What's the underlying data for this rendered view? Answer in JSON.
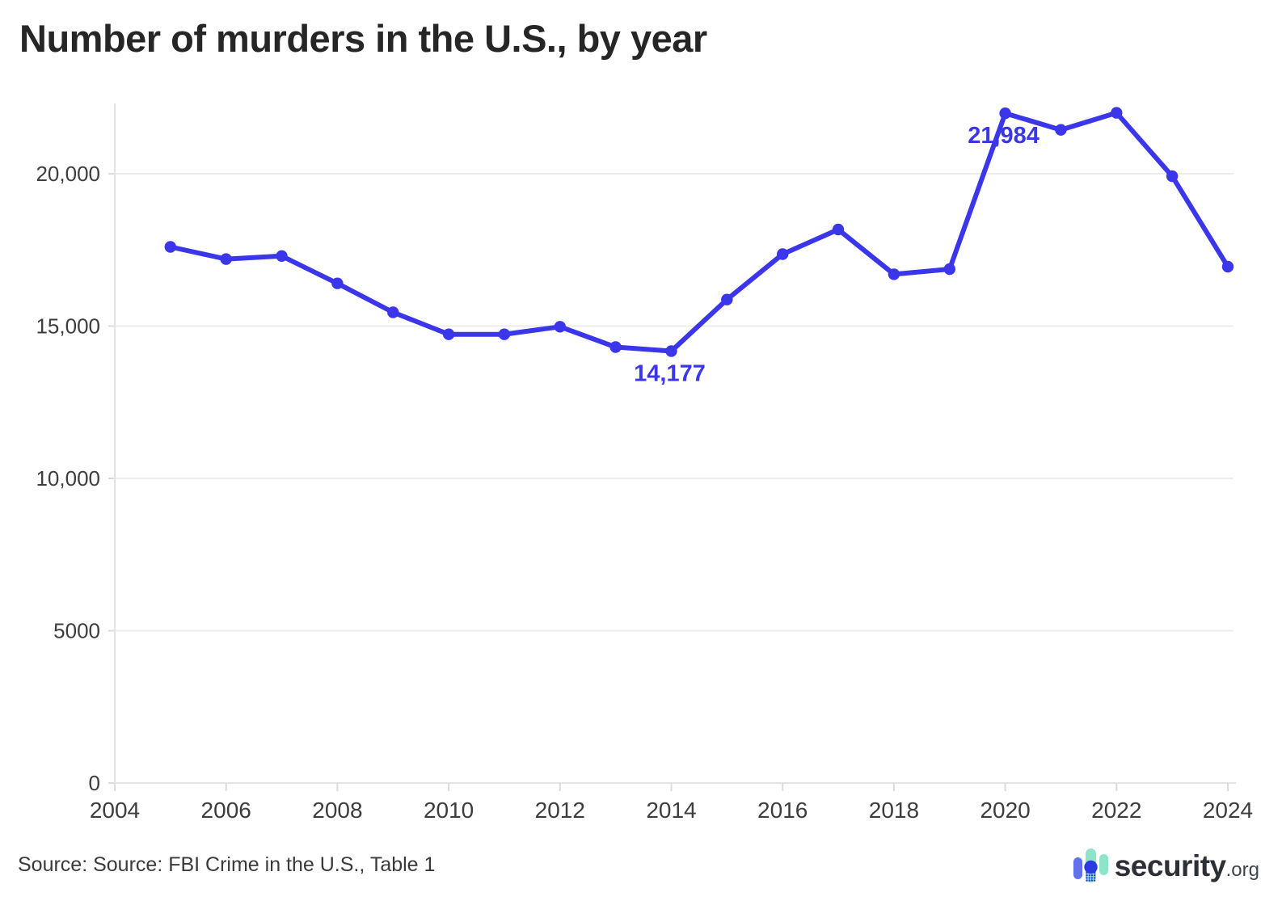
{
  "page": {
    "title": "Number of murders in the U.S., by year"
  },
  "footer": {
    "source": "Source: Source: FBI Crime in the U.S., Table 1"
  },
  "logo": {
    "brand": "security",
    "tld": ".org"
  },
  "colors": {
    "line": "#3b36ea",
    "point": "#3b36ea",
    "annotation": "#3b36ea",
    "title": "#262626",
    "axis_text": "#3d3d3d",
    "gridline": "#ececec",
    "axis_line": "#e3e3e3",
    "tick": "#dcdcdc",
    "source_text": "#3a3a3a",
    "logo_blue": "#6471ee",
    "logo_mint": "#8de4c8",
    "logo_circle": "#2c3ae2",
    "logo_text": "#2c3036",
    "logo_tld": "#3f444c",
    "background": "#ffffff"
  },
  "chart_data": {
    "type": "line",
    "title": "Number of murders in the U.S., by year",
    "series_name": "Number of murders",
    "x": [
      2005,
      2006,
      2007,
      2008,
      2009,
      2010,
      2011,
      2012,
      2013,
      2014,
      2015,
      2016,
      2017,
      2018,
      2019,
      2020,
      2021,
      2022,
      2023,
      2024
    ],
    "values": [
      17600,
      17200,
      17300,
      16400,
      15450,
      14730,
      14730,
      14980,
      14310,
      14177,
      15870,
      17360,
      18170,
      16700,
      16870,
      21984,
      21440,
      22000,
      19920,
      16950
    ],
    "xlabel": "",
    "ylabel": "",
    "xlim": [
      2004,
      2024
    ],
    "ylim": [
      0,
      22500
    ],
    "x_ticks": [
      "2004",
      "2006",
      "2008",
      "2010",
      "2012",
      "2014",
      "2016",
      "2018",
      "2020",
      "2022",
      "2024"
    ],
    "y_ticks": [
      {
        "value": 0,
        "label": "0"
      },
      {
        "value": 5000,
        "label": "5000"
      },
      {
        "value": 10000,
        "label": "10,000"
      },
      {
        "value": 15000,
        "label": "15,000"
      },
      {
        "value": 20000,
        "label": "20,000"
      }
    ],
    "grid": "horizontal",
    "legend": "none",
    "annotations": [
      {
        "year": 2014,
        "value": 14177,
        "label": "14,177"
      },
      {
        "year": 2020,
        "value": 21984,
        "label": "21,984"
      }
    ]
  }
}
